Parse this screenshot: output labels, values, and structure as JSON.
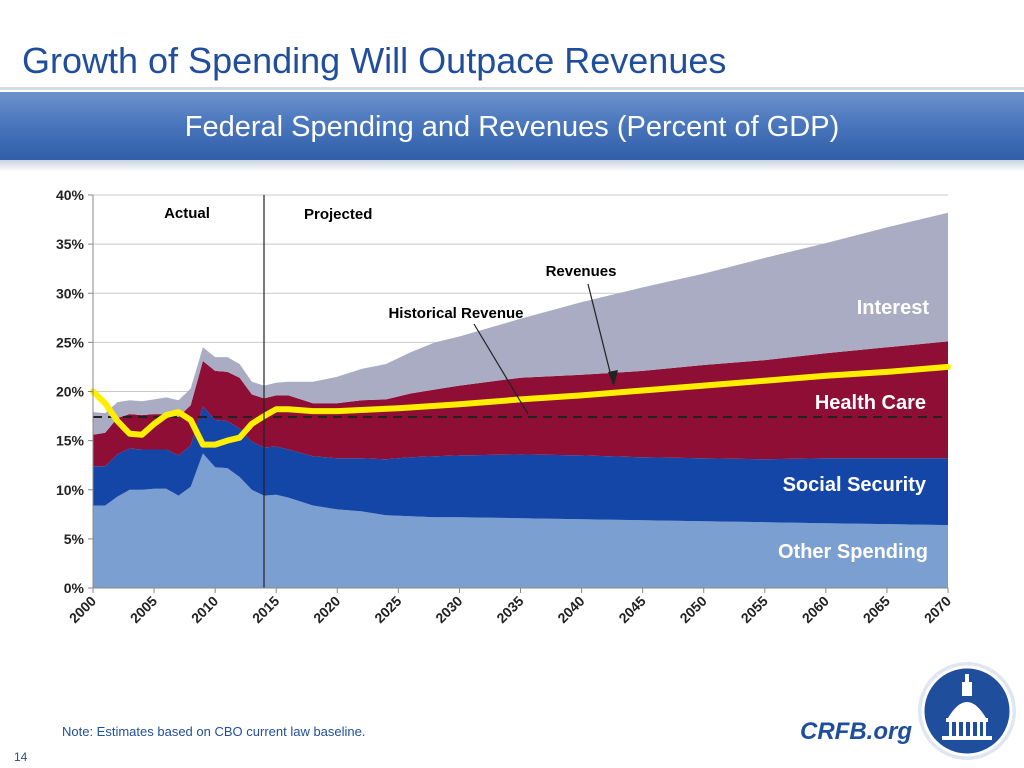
{
  "slide": {
    "title": "Growth of Spending Will Outpace Revenues",
    "banner": "Federal Spending and Revenues (Percent of GDP)",
    "note": "Note: Estimates based on CBO current law baseline.",
    "brand": "CRFB.org",
    "page_number": "14",
    "seal_icon": "capitol-dome-seal-icon"
  },
  "colors": {
    "other_spending": "#7b9fd0",
    "social_security": "#1446a8",
    "health_care": "#8e0e35",
    "interest": "#a9acc2",
    "revenues": "#ffee00",
    "historical_revenue": "#222222",
    "title_blue": "#1f4e9c"
  },
  "chart_data": {
    "type": "area",
    "stacked": true,
    "title": "Federal Spending and Revenues (Percent of GDP)",
    "ylim": [
      0,
      40
    ],
    "xlim": [
      2000,
      2070
    ],
    "y_ticks": [
      "0%",
      "5%",
      "10%",
      "15%",
      "20%",
      "25%",
      "30%",
      "35%",
      "40%"
    ],
    "x_ticks": [
      "2000",
      "2005",
      "2010",
      "2015",
      "2020",
      "2025",
      "2030",
      "2035",
      "2040",
      "2045",
      "2050",
      "2055",
      "2060",
      "2065",
      "2070"
    ],
    "grid": true,
    "x": [
      2000,
      2001,
      2002,
      2003,
      2004,
      2005,
      2006,
      2007,
      2008,
      2009,
      2010,
      2011,
      2012,
      2013,
      2014,
      2015,
      2016,
      2018,
      2020,
      2022,
      2024,
      2026,
      2028,
      2030,
      2035,
      2040,
      2045,
      2050,
      2055,
      2060,
      2065,
      2070
    ],
    "series": [
      {
        "name": "Other Spending",
        "values": [
          8.4,
          8.4,
          9.3,
          10.0,
          10.0,
          10.1,
          10.1,
          9.4,
          10.3,
          13.7,
          12.3,
          12.2,
          11.3,
          10.0,
          9.4,
          9.5,
          9.2,
          8.4,
          8.0,
          7.8,
          7.4,
          7.3,
          7.2,
          7.2,
          7.1,
          7.0,
          6.9,
          6.8,
          6.7,
          6.6,
          6.5,
          6.4
        ]
      },
      {
        "name": "Social Security",
        "values": [
          4.0,
          4.0,
          4.3,
          4.2,
          4.1,
          4.0,
          4.0,
          4.1,
          4.2,
          4.8,
          4.8,
          4.8,
          4.9,
          4.9,
          4.9,
          4.9,
          4.9,
          5.0,
          5.2,
          5.4,
          5.7,
          6.0,
          6.2,
          6.3,
          6.5,
          6.5,
          6.4,
          6.4,
          6.4,
          6.6,
          6.7,
          6.8
        ]
      },
      {
        "name": "Health Care",
        "values": [
          3.2,
          3.4,
          3.7,
          3.5,
          3.5,
          3.6,
          3.6,
          3.9,
          4.1,
          4.6,
          5.0,
          5.0,
          5.2,
          4.8,
          5.0,
          5.2,
          5.5,
          5.4,
          5.6,
          5.9,
          6.1,
          6.5,
          6.8,
          7.1,
          7.8,
          8.2,
          8.8,
          9.5,
          10.1,
          10.7,
          11.3,
          11.9
        ]
      },
      {
        "name": "Interest",
        "values": [
          2.3,
          2.0,
          1.6,
          1.4,
          1.4,
          1.5,
          1.7,
          1.7,
          1.7,
          1.4,
          1.4,
          1.5,
          1.4,
          1.3,
          1.3,
          1.3,
          1.4,
          2.2,
          2.7,
          3.2,
          3.6,
          4.2,
          4.8,
          5.0,
          6.0,
          7.4,
          8.5,
          9.3,
          10.4,
          11.2,
          12.2,
          13.1
        ]
      }
    ],
    "revenues": {
      "name": "Revenues",
      "x": [
        2000,
        2001,
        2002,
        2003,
        2004,
        2005,
        2006,
        2007,
        2008,
        2009,
        2010,
        2011,
        2012,
        2013,
        2014,
        2015,
        2016,
        2018,
        2020,
        2025,
        2030,
        2035,
        2040,
        2045,
        2050,
        2055,
        2060,
        2065,
        2070
      ],
      "values": [
        20.0,
        18.8,
        17.0,
        15.7,
        15.6,
        16.7,
        17.6,
        17.9,
        17.1,
        14.6,
        14.6,
        15.0,
        15.3,
        16.7,
        17.5,
        18.2,
        18.2,
        18.0,
        18.0,
        18.3,
        18.7,
        19.2,
        19.6,
        20.1,
        20.6,
        21.1,
        21.6,
        22.0,
        22.5
      ]
    },
    "historical_revenue": {
      "name": "Historical Revenue",
      "value": 17.4
    },
    "divider_year": 2014,
    "annotations": [
      {
        "text": "Actual"
      },
      {
        "text": "Projected"
      },
      {
        "text": "Revenues"
      },
      {
        "text": "Historical Revenue"
      },
      {
        "text": "Interest"
      },
      {
        "text": "Health Care"
      },
      {
        "text": "Social Security"
      },
      {
        "text": "Other Spending"
      }
    ]
  }
}
